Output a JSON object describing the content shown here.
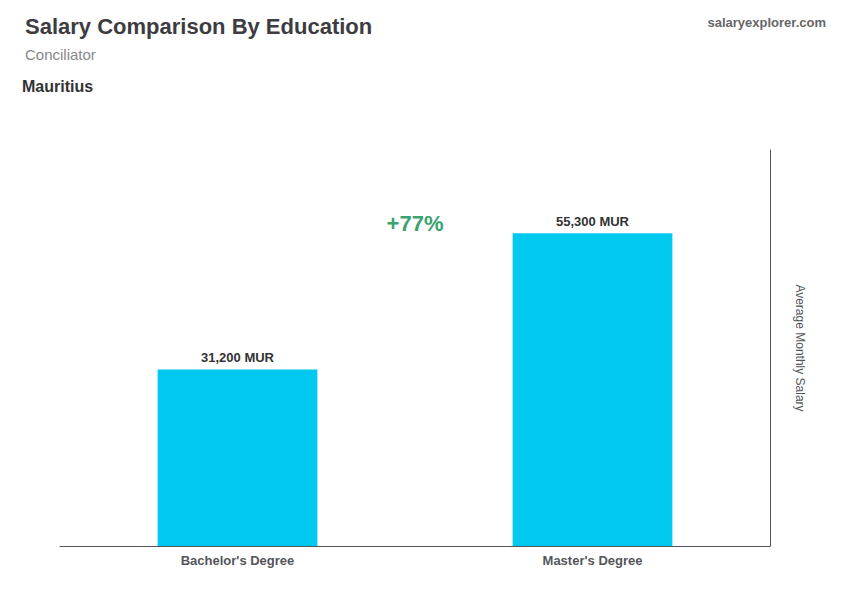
{
  "chart_data": {
    "type": "bar",
    "title": "Salary Comparison By Education",
    "subtitle": "Conciliator",
    "annotations": [
      "Mauritius",
      "salaryexplorer.com",
      "+77%"
    ],
    "ylabel": "Average Monthly Salary",
    "categories": [
      "Bachelor's Degree",
      "Master's Degree"
    ],
    "values": [
      31200,
      55300
    ],
    "value_labels": [
      "31,200 MUR",
      "55,300 MUR"
    ],
    "color": "#00C8EE",
    "ylim": [
      0,
      70000
    ],
    "grid": false,
    "data_labels": true,
    "tick_labels": "x"
  }
}
